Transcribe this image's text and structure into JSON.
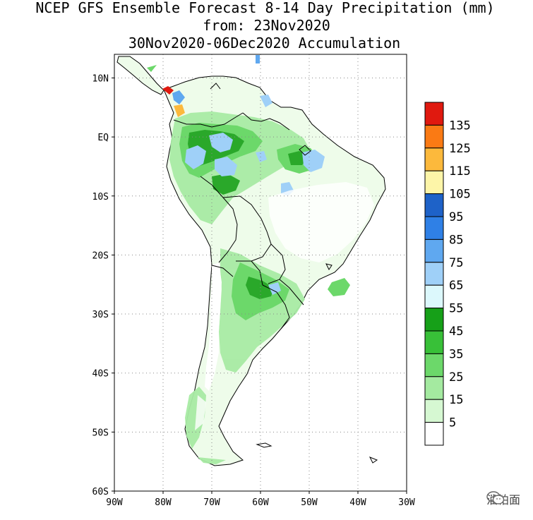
{
  "title": {
    "line1": "NCEP GFS Ensemble Forecast 8-14 Day Precipitation (mm)",
    "line2": "from: 23Nov2020",
    "line3": "30Nov2020-06Dec2020 Accumulation"
  },
  "map": {
    "region": "South America",
    "lat_labels": [
      "10N",
      "EQ",
      "10S",
      "20S",
      "30S",
      "40S",
      "50S",
      "60S"
    ],
    "lon_labels": [
      "90W",
      "80W",
      "70W",
      "60W",
      "50W",
      "40W",
      "30W"
    ],
    "grid": "dotted",
    "lat_range": [
      -60,
      14
    ],
    "lon_range": [
      -90,
      -30
    ]
  },
  "legend": {
    "levels": [
      {
        "label": "135",
        "color": "#e0190f"
      },
      {
        "label": "125",
        "color": "#fa7a14"
      },
      {
        "label": "115",
        "color": "#fcb93c"
      },
      {
        "label": "105",
        "color": "#fdf5a8"
      },
      {
        "label": "95",
        "color": "#1e62c8"
      },
      {
        "label": "85",
        "color": "#2f80e6"
      },
      {
        "label": "75",
        "color": "#5fa8f0"
      },
      {
        "label": "65",
        "color": "#9fd0f8"
      },
      {
        "label": "55",
        "color": "#dcf8fc"
      },
      {
        "label": "45",
        "color": "#16a018"
      },
      {
        "label": "35",
        "color": "#38c038"
      },
      {
        "label": "25",
        "color": "#6cd86a"
      },
      {
        "label": "15",
        "color": "#a4eaa0"
      },
      {
        "label": "5",
        "color": "#d6f8d2"
      },
      {
        "label": "",
        "color": "#ffffff"
      }
    ]
  },
  "watermark": {
    "text": "油粕面",
    "icon": "wechat-icon"
  },
  "colors": {
    "land_light": "#e8fae4",
    "ocean": "#ffffff",
    "border": "#000000"
  }
}
